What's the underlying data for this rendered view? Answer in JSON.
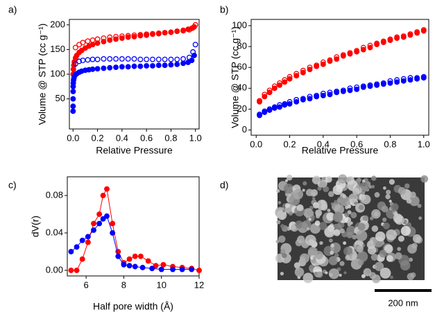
{
  "chart_data": [
    {
      "type": "scatter",
      "label": "a)",
      "xlabel": "Relative Pressure",
      "ylabel": "Volume @ STP (cc g⁻¹)",
      "xlim": [
        -0.03,
        1.03
      ],
      "ylim": [
        -11,
        211
      ],
      "xticks": [
        {
          "value": 0,
          "label": "0.0"
        },
        {
          "value": 0.2,
          "label": "0.2"
        },
        {
          "value": 0.4,
          "label": "0.4"
        },
        {
          "value": 0.6,
          "label": "0.6"
        },
        {
          "value": 0.8,
          "label": "0.8"
        },
        {
          "value": 1,
          "label": "1.0"
        }
      ],
      "yticks": [
        50,
        100,
        150,
        200
      ],
      "series": [
        {
          "color": "#ff0000",
          "marker": "filled",
          "x": [
            0.001,
            0.003,
            0.006,
            0.01,
            0.02,
            0.03,
            0.05,
            0.07,
            0.1,
            0.13,
            0.16,
            0.2,
            0.25,
            0.3,
            0.35,
            0.4,
            0.45,
            0.5,
            0.55,
            0.6,
            0.65,
            0.7,
            0.75,
            0.8,
            0.85,
            0.9,
            0.94,
            0.97,
            0.99
          ],
          "values": [
            100,
            110,
            118,
            125,
            133,
            138,
            144,
            148,
            153,
            157,
            160,
            163,
            166,
            169,
            171,
            173,
            175,
            176,
            178,
            179,
            181,
            182,
            184,
            185,
            187,
            189,
            191,
            193,
            196
          ]
        },
        {
          "color": "#ff0000",
          "marker": "open",
          "x": [
            0.02,
            0.05,
            0.08,
            0.12,
            0.16,
            0.2,
            0.25,
            0.3,
            0.35,
            0.4,
            0.45,
            0.5,
            0.55,
            0.6,
            0.65,
            0.7,
            0.75,
            0.8,
            0.85,
            0.9,
            0.95,
            0.98,
            1.0
          ],
          "values": [
            154,
            160,
            164,
            167,
            169,
            171,
            173,
            175,
            176,
            177,
            178,
            179,
            180,
            181,
            182,
            183,
            184,
            185,
            187,
            188,
            190,
            194,
            200
          ]
        },
        {
          "color": "#0000ff",
          "marker": "filled",
          "x": [
            0.0001,
            0.0002,
            0.0004,
            0.0007,
            0.001,
            0.002,
            0.004,
            0.007,
            0.01,
            0.02,
            0.03,
            0.05,
            0.07,
            0.1,
            0.13,
            0.16,
            0.2,
            0.25,
            0.3,
            0.35,
            0.4,
            0.45,
            0.5,
            0.55,
            0.6,
            0.65,
            0.7,
            0.75,
            0.8,
            0.85,
            0.9,
            0.94,
            0.97,
            0.99
          ],
          "values": [
            25,
            35,
            50,
            65,
            75,
            82,
            88,
            92,
            95,
            99,
            101,
            104,
            106,
            108,
            109,
            110,
            111,
            112,
            113,
            114,
            115,
            115,
            116,
            116,
            117,
            117,
            118,
            118,
            119,
            120,
            122,
            124,
            128,
            138
          ]
        },
        {
          "color": "#0000ff",
          "marker": "open",
          "x": [
            0.02,
            0.05,
            0.08,
            0.12,
            0.16,
            0.2,
            0.25,
            0.3,
            0.35,
            0.4,
            0.45,
            0.5,
            0.55,
            0.6,
            0.65,
            0.7,
            0.75,
            0.8,
            0.85,
            0.9,
            0.95,
            0.98,
            1.0
          ],
          "values": [
            121,
            126,
            128,
            129,
            130,
            130,
            131,
            131,
            131,
            131,
            131,
            131,
            130,
            130,
            130,
            130,
            130,
            130,
            130,
            131,
            134,
            145,
            160
          ]
        }
      ]
    },
    {
      "type": "scatter",
      "label": "b)",
      "xlabel": "Relative Pressure",
      "ylabel": "Volume @ STP (cc g⁻¹)",
      "xlim": [
        -0.03,
        1.03
      ],
      "ylim": [
        -5,
        106
      ],
      "xticks": [
        {
          "value": 0,
          "label": "0.0"
        },
        {
          "value": 0.2,
          "label": "0.2"
        },
        {
          "value": 0.4,
          "label": "0.4"
        },
        {
          "value": 0.6,
          "label": "0.6"
        },
        {
          "value": 0.8,
          "label": "0.8"
        },
        {
          "value": 1,
          "label": "1.0"
        }
      ],
      "yticks": [
        0,
        20,
        40,
        60,
        80,
        100
      ],
      "series": [
        {
          "color": "#ff0000",
          "marker": "filled",
          "x": [
            0.02,
            0.05,
            0.08,
            0.11,
            0.14,
            0.17,
            0.2,
            0.24,
            0.28,
            0.32,
            0.36,
            0.4,
            0.44,
            0.48,
            0.52,
            0.56,
            0.6,
            0.64,
            0.68,
            0.72,
            0.76,
            0.8,
            0.84,
            0.88,
            0.92,
            0.96,
            1.0
          ],
          "values": [
            27,
            32,
            36,
            40,
            43,
            46,
            49,
            52,
            55,
            58,
            61,
            63,
            66,
            68,
            71,
            73,
            75,
            77,
            79,
            82,
            84,
            86,
            88,
            89,
            91,
            93,
            95
          ]
        },
        {
          "color": "#ff0000",
          "marker": "open",
          "x": [
            0.02,
            0.05,
            0.08,
            0.11,
            0.14,
            0.17,
            0.2,
            0.24,
            0.28,
            0.32,
            0.36,
            0.4,
            0.44,
            0.48,
            0.52,
            0.56,
            0.6,
            0.64,
            0.68,
            0.72,
            0.76,
            0.8,
            0.84,
            0.88,
            0.92,
            0.96,
            1.0
          ],
          "values": [
            28,
            34,
            38,
            42,
            45,
            48,
            51,
            54,
            57,
            60,
            62,
            65,
            67,
            70,
            72,
            74,
            76,
            79,
            81,
            83,
            85,
            87,
            89,
            90,
            92,
            94,
            96
          ]
        },
        {
          "color": "#0000ff",
          "marker": "filled",
          "x": [
            0.02,
            0.05,
            0.08,
            0.11,
            0.14,
            0.17,
            0.2,
            0.24,
            0.28,
            0.32,
            0.36,
            0.4,
            0.44,
            0.48,
            0.52,
            0.56,
            0.6,
            0.64,
            0.68,
            0.72,
            0.76,
            0.8,
            0.84,
            0.88,
            0.92,
            0.96,
            1.0
          ],
          "values": [
            14,
            17,
            19,
            21,
            22,
            24,
            25,
            27,
            29,
            30,
            32,
            33,
            34,
            36,
            37,
            38,
            39,
            41,
            42,
            43,
            44,
            45,
            46,
            47,
            48,
            49,
            50
          ]
        },
        {
          "color": "#0000ff",
          "marker": "open",
          "x": [
            0.02,
            0.05,
            0.08,
            0.11,
            0.14,
            0.17,
            0.2,
            0.24,
            0.28,
            0.32,
            0.36,
            0.4,
            0.44,
            0.48,
            0.52,
            0.56,
            0.6,
            0.64,
            0.68,
            0.72,
            0.76,
            0.8,
            0.84,
            0.88,
            0.92,
            0.96,
            1.0
          ],
          "values": [
            15,
            18,
            20,
            22,
            24,
            25,
            27,
            29,
            30,
            32,
            33,
            35,
            36,
            37,
            38,
            40,
            41,
            42,
            43,
            44,
            45,
            47,
            48,
            49,
            50,
            50,
            51
          ]
        }
      ]
    },
    {
      "type": "line",
      "label": "c)",
      "xlabel": "Half pore width (Å)",
      "ylabel": "dV(r)",
      "xlim": [
        5,
        12
      ],
      "ylim": [
        -0.006,
        0.1
      ],
      "xticks": [
        6,
        8,
        10,
        12
      ],
      "yticks": [
        {
          "value": 0,
          "label": "0.00"
        },
        {
          "value": 0.04,
          "label": "0.04"
        },
        {
          "value": 0.08,
          "label": "0.08"
        }
      ],
      "series": [
        {
          "color": "#ff0000",
          "marker": "filled",
          "x": [
            5.2,
            5.5,
            5.8,
            6.1,
            6.4,
            6.7,
            6.9,
            7.1,
            7.4,
            7.7,
            8.0,
            8.3,
            8.6,
            8.9,
            9.3,
            9.7,
            10.1,
            10.6,
            11.1,
            11.6,
            12
          ],
          "values": [
            0.0,
            0.0,
            0.012,
            0.03,
            0.05,
            0.06,
            0.08,
            0.087,
            0.05,
            0.02,
            0.008,
            0.012,
            0.015,
            0.015,
            0.01,
            0.005,
            0.006,
            0.004,
            0.003,
            0.002,
            0.0
          ]
        },
        {
          "color": "#0000ff",
          "marker": "filled",
          "x": [
            5.2,
            5.5,
            5.8,
            6.1,
            6.4,
            6.7,
            6.9,
            7.1,
            7.4,
            7.7,
            8.0,
            8.3,
            8.6,
            9.0,
            9.5,
            10.0,
            10.6,
            11.1,
            11.6
          ],
          "values": [
            0.02,
            0.025,
            0.032,
            0.036,
            0.043,
            0.05,
            0.055,
            0.058,
            0.04,
            0.015,
            0.006,
            0.005,
            0.004,
            0.003,
            0.002,
            0.001,
            0.001,
            0.001,
            0.001
          ]
        }
      ]
    },
    {
      "type": "image",
      "label": "d)",
      "scale_bar": "200 nm"
    }
  ]
}
